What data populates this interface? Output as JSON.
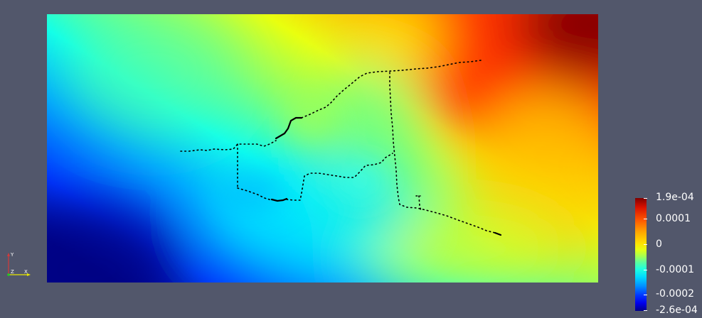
{
  "colorbar": {
    "labels": [
      "1.9e-04",
      "0.0001",
      "0",
      "-0.0001",
      "-0.0002",
      "-2.6e-04"
    ]
  },
  "axes": {
    "x_label": "X",
    "y_label": "Y",
    "z_label": "Z"
  },
  "colors": {
    "background": "#52576b",
    "x_axis": "#e8e800",
    "y_axis": "#d43a3a",
    "z_axis": "#22cc22",
    "colormap": "jet"
  }
}
